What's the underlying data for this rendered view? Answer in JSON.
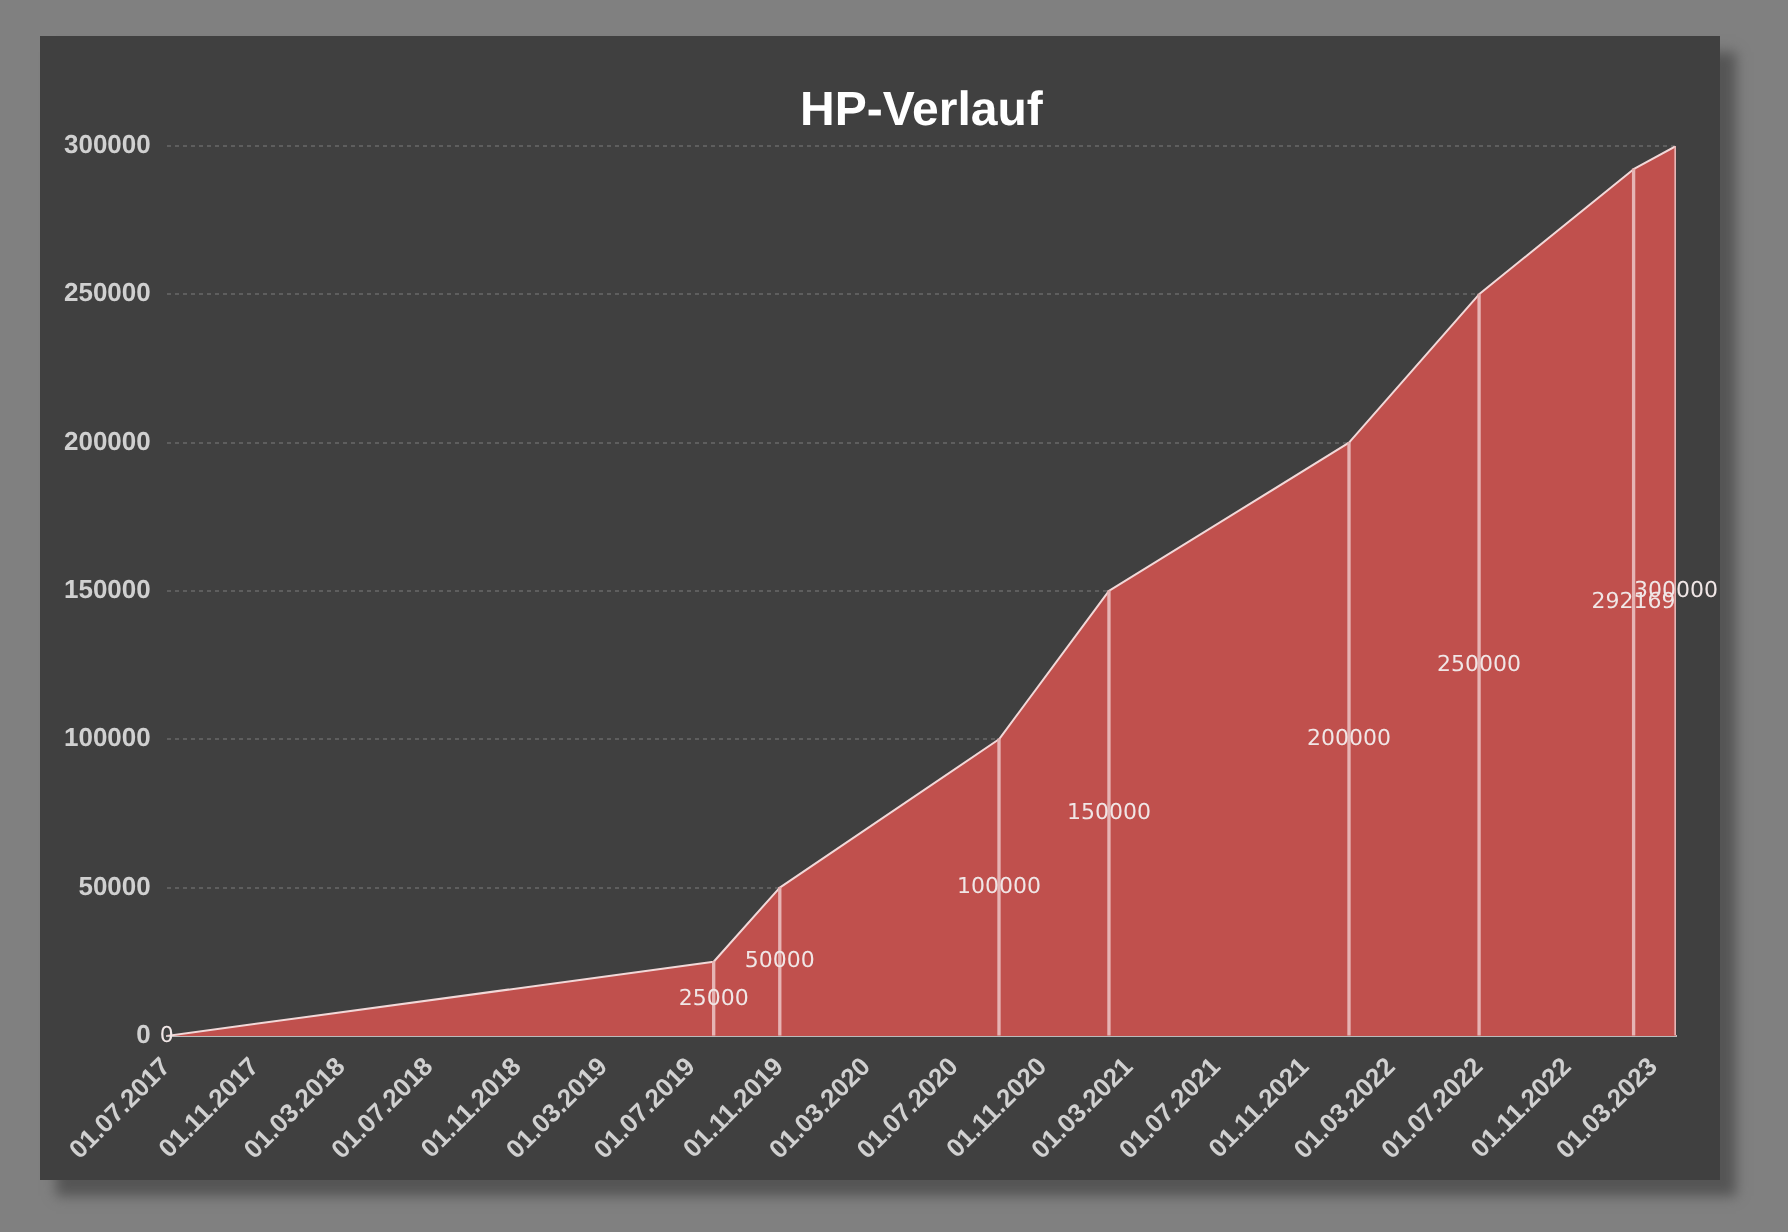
{
  "chart_data": {
    "type": "area",
    "title": "HP-Verlauf",
    "x": [
      "2017-07-01",
      "2019-08-01",
      "2019-11-01",
      "2020-09-01",
      "2021-02-01",
      "2022-01-01",
      "2022-07-01",
      "2023-02-01",
      "2023-04-01"
    ],
    "series": [
      {
        "color": "#c0504d",
        "values": [
          0,
          25000,
          50000,
          100000,
          150000,
          200000,
          250000,
          292169,
          300000
        ]
      },
      {
        "type": "bar",
        "color": "#e6b4b4",
        "values": [
          0,
          25000,
          50000,
          100000,
          150000,
          200000,
          250000,
          292169,
          300000
        ],
        "value_labels": [
          "0",
          "25000",
          "50000",
          "100000",
          "150000",
          "200000",
          "250000",
          "292169",
          "300000"
        ]
      }
    ],
    "xlim": [
      "2017-07-01",
      "2023-04-01"
    ],
    "xticks": [
      {
        "value": "2017-07-01",
        "label": "01.07.2017"
      },
      {
        "value": "2017-11-01",
        "label": "01.11.2017"
      },
      {
        "value": "2018-03-01",
        "label": "01.03.2018"
      },
      {
        "value": "2018-07-01",
        "label": "01.07.2018"
      },
      {
        "value": "2018-11-01",
        "label": "01.11.2018"
      },
      {
        "value": "2019-03-01",
        "label": "01.03.2019"
      },
      {
        "value": "2019-07-01",
        "label": "01.07.2019"
      },
      {
        "value": "2019-11-01",
        "label": "01.11.2019"
      },
      {
        "value": "2020-03-01",
        "label": "01.03.2020"
      },
      {
        "value": "2020-07-01",
        "label": "01.07.2020"
      },
      {
        "value": "2020-11-01",
        "label": "01.11.2020"
      },
      {
        "value": "2021-03-01",
        "label": "01.03.2021"
      },
      {
        "value": "2021-07-01",
        "label": "01.07.2021"
      },
      {
        "value": "2021-11-01",
        "label": "01.11.2021"
      },
      {
        "value": "2022-03-01",
        "label": "01.03.2022"
      },
      {
        "value": "2022-07-01",
        "label": "01.07.2022"
      },
      {
        "value": "2022-11-01",
        "label": "01.11.2022"
      },
      {
        "value": "2023-03-01",
        "label": "01.03.2023"
      }
    ],
    "ylim": [
      0,
      300000
    ],
    "yticks": [
      0,
      50000,
      100000,
      150000,
      200000,
      250000,
      300000
    ],
    "grid": "y",
    "legend": false
  }
}
